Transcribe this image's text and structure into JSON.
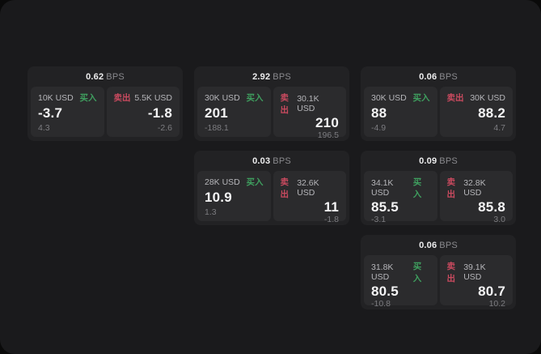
{
  "labels": {
    "bps": "BPS",
    "buy": "买入",
    "sell": "卖出"
  },
  "colors": {
    "page_bg": "#1a1a1c",
    "card_bg": "#222224",
    "panel_bg": "#2b2b2d",
    "buy_accent": "#3f9f5f",
    "sell_accent": "#c94a5f"
  },
  "cards": [
    {
      "bps": "0.62",
      "buy": {
        "amount": "10K USD",
        "price": "-3.7",
        "sub": "4.3"
      },
      "sell": {
        "amount": "5.5K USD",
        "price": "-1.8",
        "sub": "-2.6"
      }
    },
    {
      "bps": "2.92",
      "buy": {
        "amount": "30K USD",
        "price": "201",
        "sub": "-188.1"
      },
      "sell": {
        "amount": "30.1K USD",
        "price": "210",
        "sub": "196.5"
      }
    },
    {
      "bps": "0.06",
      "buy": {
        "amount": "30K USD",
        "price": "88",
        "sub": "-4.9"
      },
      "sell": {
        "amount": "30K USD",
        "price": "88.2",
        "sub": "4.7"
      }
    },
    {
      "bps": "0.03",
      "buy": {
        "amount": "28K USD",
        "price": "10.9",
        "sub": "1.3"
      },
      "sell": {
        "amount": "32.6K USD",
        "price": "11",
        "sub": "-1.8"
      }
    },
    {
      "bps": "0.09",
      "buy": {
        "amount": "34.1K USD",
        "price": "85.5",
        "sub": "-3.1"
      },
      "sell": {
        "amount": "32.8K USD",
        "price": "85.8",
        "sub": "3.0"
      }
    },
    {
      "bps": "0.06",
      "buy": {
        "amount": "31.8K USD",
        "price": "80.5",
        "sub": "-10.8"
      },
      "sell": {
        "amount": "39.1K USD",
        "price": "80.7",
        "sub": "10.2"
      }
    }
  ]
}
